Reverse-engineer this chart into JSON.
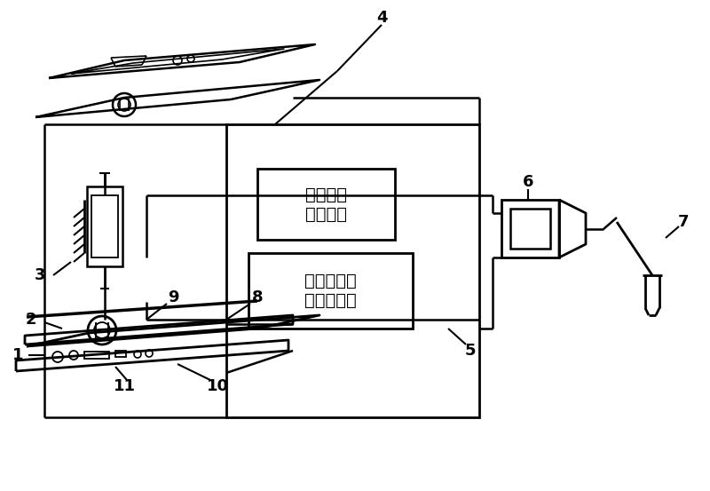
{
  "background_color": "#ffffff",
  "box1_text": "邦头控制\n驱动电路",
  "box2_text": "平台运动控\n制驱动电路",
  "label_1": "1",
  "label_2": "2",
  "label_3": "3",
  "label_4": "4",
  "label_5": "5",
  "label_6": "6",
  "label_7": "7",
  "label_8": "8",
  "label_9": "9",
  "label_10": "10",
  "label_11": "11"
}
